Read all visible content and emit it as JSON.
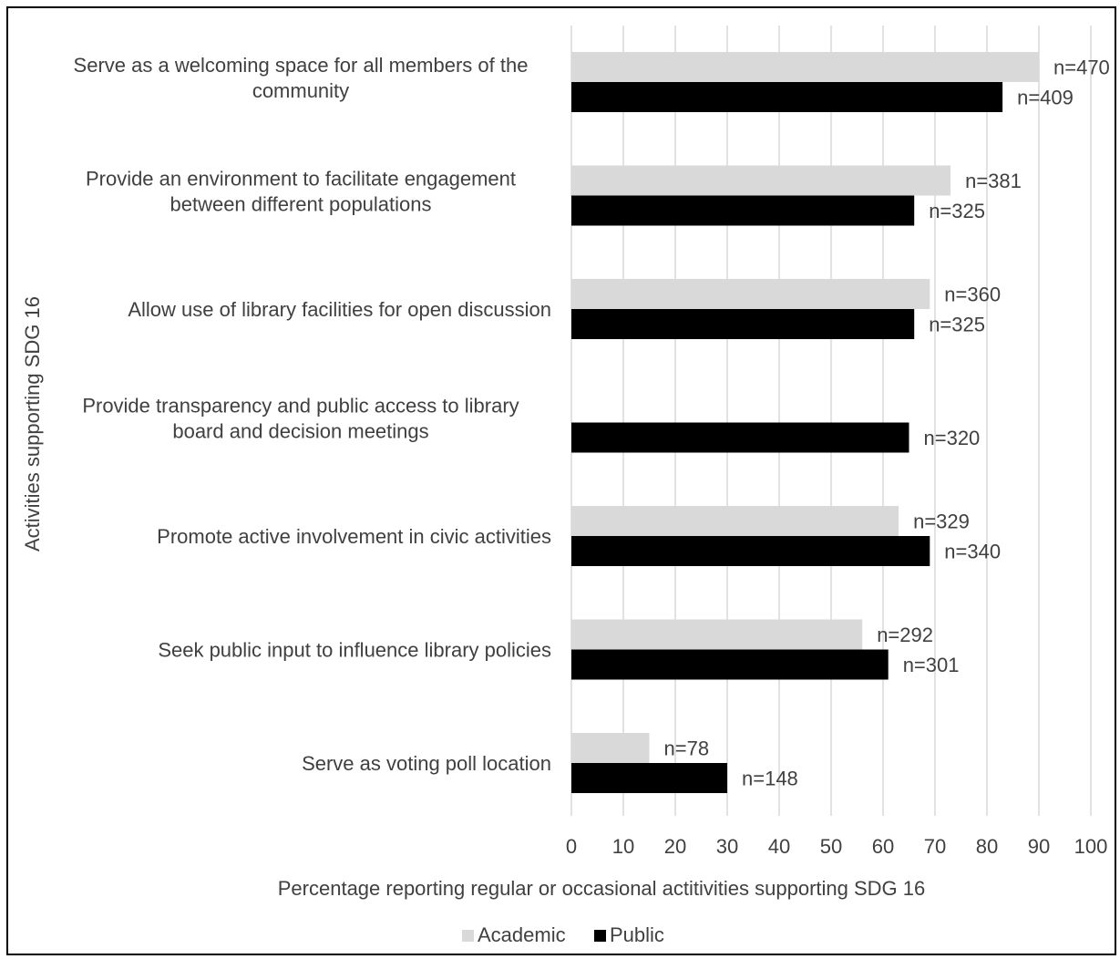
{
  "chart_data": {
    "type": "bar",
    "orientation": "horizontal",
    "title": "",
    "xlabel": "Percentage reporting regular or occasional actitivities supporting SDG 16",
    "ylabel": "Activities supporting SDG 16",
    "xlim": [
      0,
      100
    ],
    "xticks": [
      "0",
      "10",
      "20",
      "30",
      "40",
      "50",
      "60",
      "70",
      "80",
      "90",
      "100"
    ],
    "grid": "vertical",
    "legend_position": "bottom",
    "categories": [
      [
        "Serve as a welcoming space for all members of the",
        "community"
      ],
      [
        "Provide an environment to facilitate engagement",
        "between different populations"
      ],
      [
        "Allow use of library facilities for open discussion"
      ],
      [
        "Provide transparency and public access to library",
        "board and decision meetings"
      ],
      [
        "Promote active involvement in civic activities"
      ],
      [
        "Seek public input to influence library policies"
      ],
      [
        "Serve as voting poll location"
      ]
    ],
    "series": [
      {
        "name": "Academic",
        "color": "#d9d9d9",
        "values": [
          90,
          73,
          69,
          null,
          63,
          56,
          15
        ],
        "labels": [
          "n=470",
          "n=381",
          "n=360",
          null,
          "n=329",
          "n=292",
          "n=78"
        ]
      },
      {
        "name": "Public",
        "color": "#000000",
        "values": [
          83,
          66,
          66,
          65,
          69,
          61,
          30
        ],
        "labels": [
          "n=409",
          "n=325",
          "n=325",
          "n=320",
          "n=340",
          "n=301",
          "n=148"
        ]
      }
    ]
  }
}
